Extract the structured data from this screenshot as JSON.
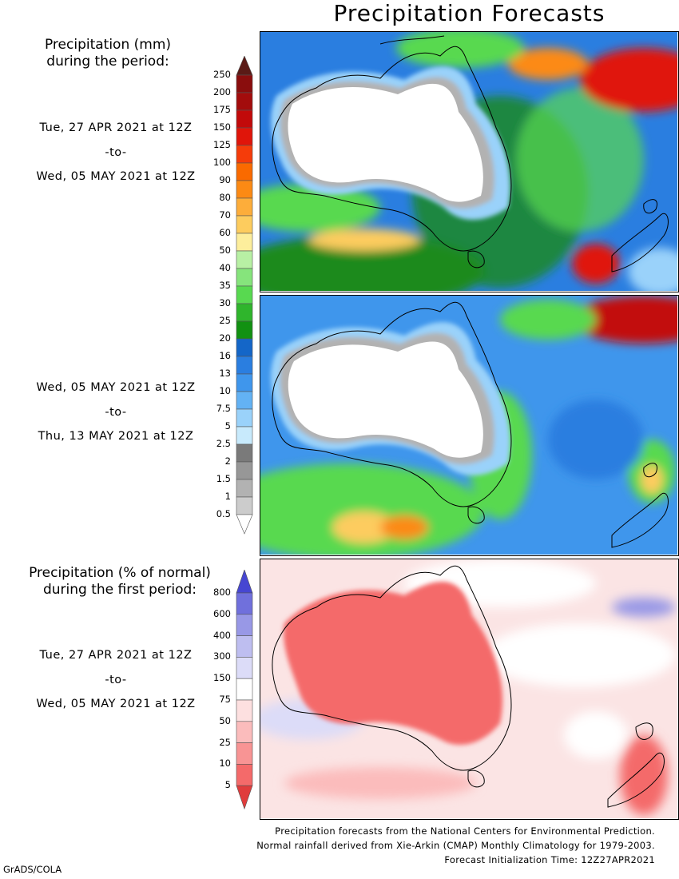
{
  "title": "Precipitation Forecasts",
  "section1": {
    "heading_line1": "Precipitation (mm)",
    "heading_line2": "during the period:",
    "period1": {
      "start": "Tue, 27 APR 2021 at 12Z",
      "sep": "-to-",
      "end": "Wed, 05 MAY 2021 at 12Z"
    },
    "period2": {
      "start": "Wed, 05 MAY 2021 at 12Z",
      "sep": "-to-",
      "end": "Thu, 13 MAY 2021 at 12Z"
    },
    "colorbar": {
      "labels": [
        "250",
        "200",
        "175",
        "150",
        "125",
        "100",
        "90",
        "80",
        "70",
        "60",
        "50",
        "40",
        "35",
        "30",
        "25",
        "20",
        "16",
        "13",
        "10",
        "7.5",
        "5",
        "2.5",
        "2",
        "1.5",
        "1",
        "0.5"
      ],
      "colors": [
        "#5a1a16",
        "#8a0d0d",
        "#a30c0c",
        "#c20a0a",
        "#e0150a",
        "#f53c0a",
        "#fa6a00",
        "#fc8a14",
        "#fdad3a",
        "#fdcc5e",
        "#fdee9c",
        "#b8f0a4",
        "#86e47c",
        "#58d950",
        "#2fb52c",
        "#129112",
        "#1466c8",
        "#2a7ee0",
        "#3f96ec",
        "#63b2f4",
        "#9ad2fa",
        "#c8eafc",
        "#7a7a7a",
        "#979797",
        "#b2b2b2",
        "#cccccc",
        "#ffffff"
      ]
    }
  },
  "section2": {
    "heading_line1": "Precipitation (% of normal)",
    "heading_line2": "during the first period:",
    "period": {
      "start": "Tue, 27 APR 2021 at 12Z",
      "sep": "-to-",
      "end": "Wed, 05 MAY 2021 at 12Z"
    },
    "colorbar": {
      "labels": [
        "800",
        "600",
        "400",
        "300",
        "150",
        "75",
        "50",
        "25",
        "10",
        "5"
      ],
      "colors": [
        "#4646d2",
        "#7070dc",
        "#9898e6",
        "#bebef0",
        "#dcdcf8",
        "#ffffff",
        "#fde0e0",
        "#fbbcbc",
        "#f89494",
        "#f46a6a",
        "#e03c3c"
      ]
    }
  },
  "footer": {
    "line1": "Precipitation forecasts from the National Centers for Environmental Prediction.",
    "line2": "Normal rainfall derived from Xie-Arkin (CMAP) Monthly Climatology for 1979-2003.",
    "line3": "Forecast Initialization Time: 12Z27APR2021"
  },
  "credit": "GrADS/COLA"
}
